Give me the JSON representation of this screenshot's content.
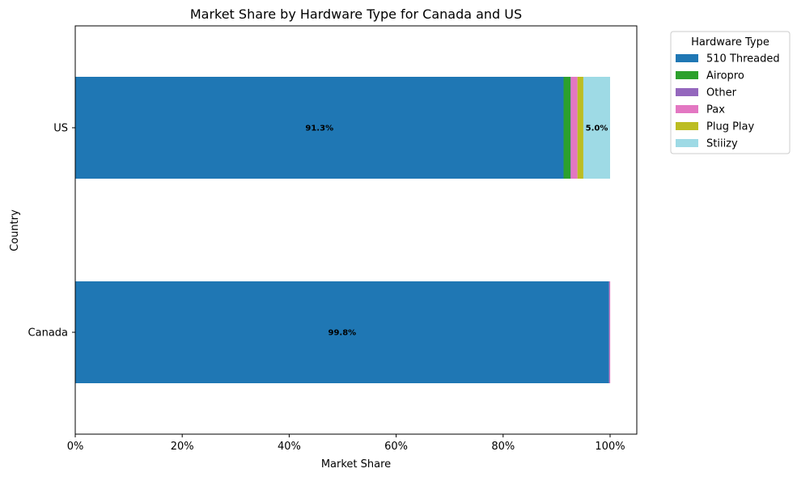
{
  "chart_data": {
    "type": "bar",
    "orientation": "horizontal",
    "stacked": true,
    "title": "Market Share by Hardware Type for Canada and US",
    "xlabel": "Market Share",
    "ylabel": "Country",
    "categories": [
      "US",
      "Canada"
    ],
    "x_ticks": [
      "0%",
      "20%",
      "40%",
      "60%",
      "80%",
      "100%"
    ],
    "xlim": [
      0,
      1.05
    ],
    "legend": {
      "title": "Hardware Type",
      "placement": "outside-top-right"
    },
    "series": [
      {
        "name": "510 Threaded",
        "color": "#1f77b4",
        "values": [
          0.913,
          0.998
        ]
      },
      {
        "name": "Airopro",
        "color": "#2ca02c",
        "values": [
          0.013,
          0.0
        ]
      },
      {
        "name": "Other",
        "color": "#9467bd",
        "values": [
          0.001,
          0.001
        ]
      },
      {
        "name": "Pax",
        "color": "#e377c2",
        "values": [
          0.012,
          0.001
        ]
      },
      {
        "name": "Plug Play",
        "color": "#bcbd22",
        "values": [
          0.011,
          0.0
        ]
      },
      {
        "name": "Stiiizy",
        "color": "#9edae5",
        "values": [
          0.05,
          0.0
        ]
      }
    ],
    "data_labels": [
      {
        "category": "US",
        "series": "510 Threaded",
        "text": "91.3%"
      },
      {
        "category": "US",
        "series": "Stiiizy",
        "text": "5.0%"
      },
      {
        "category": "Canada",
        "series": "510 Threaded",
        "text": "99.8%"
      }
    ],
    "grid": false
  }
}
